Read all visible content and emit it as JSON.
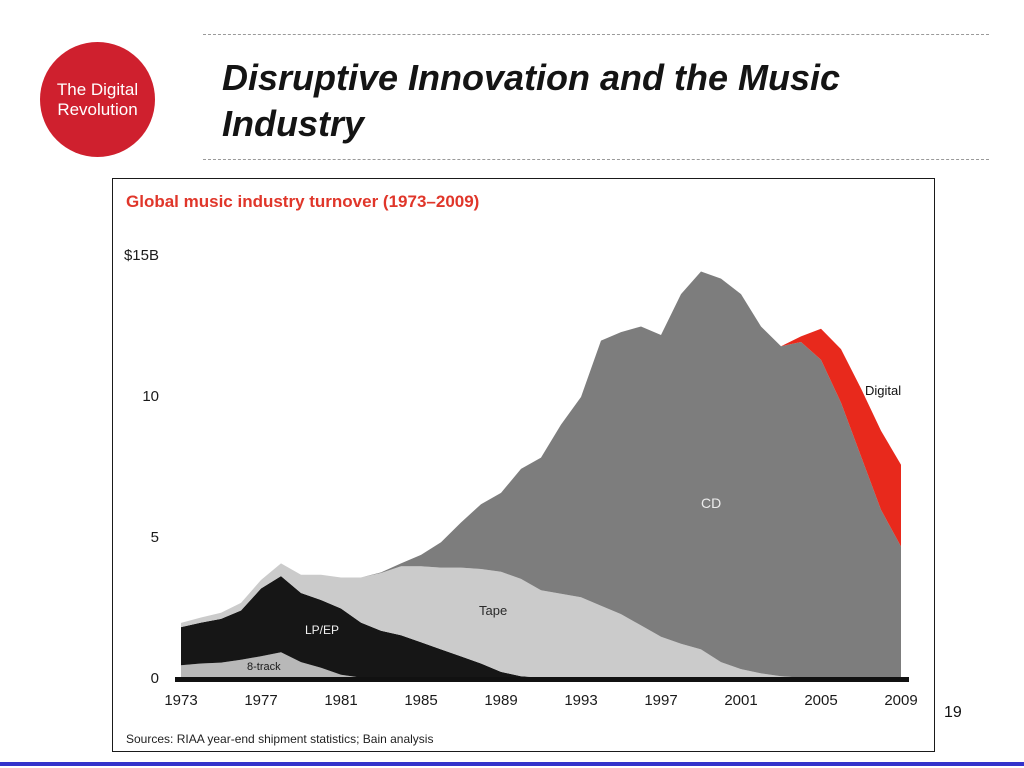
{
  "slide": {
    "badge": {
      "line1": "The Digital",
      "line2": "Revolution",
      "color": "#cf202e"
    },
    "title_line1": "Disruptive Innovation and the Music",
    "title_line2": "Industry",
    "page_number": "19",
    "accent_line_color": "#3333cc"
  },
  "chart_data": {
    "type": "area",
    "stacked": true,
    "title": "Global music industry turnover (1973–2009)",
    "title_color": "#e0362a",
    "source_note": "Sources: RIAA year-end shipment statistics; Bain analysis",
    "unit": "$B",
    "xlabel": "",
    "ylabel": "",
    "ylim": [
      0,
      15
    ],
    "grid": false,
    "legend": "inline-labels",
    "x": [
      1973,
      1974,
      1975,
      1976,
      1977,
      1978,
      1979,
      1980,
      1981,
      1982,
      1983,
      1984,
      1985,
      1986,
      1987,
      1988,
      1989,
      1990,
      1991,
      1992,
      1993,
      1994,
      1995,
      1996,
      1997,
      1998,
      1999,
      2000,
      2001,
      2002,
      2003,
      2004,
      2005,
      2006,
      2007,
      2008,
      2009
    ],
    "xticks": [
      1973,
      1977,
      1981,
      1985,
      1989,
      1993,
      1997,
      2001,
      2005,
      2009
    ],
    "yticks": [
      {
        "label": "$15B",
        "value": 15
      },
      {
        "label": "10",
        "value": 10
      },
      {
        "label": "5",
        "value": 5
      },
      {
        "label": "0",
        "value": 0
      }
    ],
    "series": [
      {
        "id": "eight-track",
        "name": "8-track",
        "color": "#b8b8b8",
        "label_color": "#1a1a1a",
        "values": [
          0.49,
          0.55,
          0.58,
          0.68,
          0.81,
          0.95,
          0.6,
          0.4,
          0.15,
          0.05,
          0.01,
          0,
          0,
          0,
          0,
          0,
          0,
          0,
          0,
          0,
          0,
          0,
          0,
          0,
          0,
          0,
          0,
          0,
          0,
          0,
          0,
          0,
          0,
          0,
          0,
          0,
          0
        ]
      },
      {
        "id": "lp-ep",
        "name": "LP/EP",
        "color": "#161616",
        "label_color": "#f2f2f2",
        "values": [
          1.35,
          1.45,
          1.55,
          1.75,
          2.4,
          2.7,
          2.45,
          2.4,
          2.35,
          1.95,
          1.7,
          1.55,
          1.3,
          1.05,
          0.8,
          0.55,
          0.25,
          0.1,
          0.05,
          0.02,
          0,
          0,
          0,
          0,
          0,
          0,
          0,
          0,
          0,
          0,
          0,
          0,
          0,
          0,
          0,
          0,
          0
        ]
      },
      {
        "id": "tape",
        "name": "Tape",
        "color": "#cbcbcb",
        "label_color": "#2a2a2a",
        "values": [
          0.15,
          0.18,
          0.22,
          0.27,
          0.3,
          0.45,
          0.65,
          0.9,
          1.1,
          1.6,
          2.05,
          2.45,
          2.7,
          2.9,
          3.15,
          3.35,
          3.55,
          3.45,
          3.1,
          3.0,
          2.9,
          2.6,
          2.3,
          1.9,
          1.5,
          1.25,
          1.05,
          0.6,
          0.35,
          0.2,
          0.1,
          0.05,
          0.02,
          0,
          0,
          0,
          0
        ]
      },
      {
        "id": "cd",
        "name": "CD",
        "color": "#7d7d7d",
        "label_color": "#ececec",
        "values": [
          0,
          0,
          0,
          0,
          0,
          0,
          0,
          0,
          0,
          0,
          0.02,
          0.1,
          0.4,
          0.9,
          1.6,
          2.3,
          2.8,
          3.9,
          4.7,
          6.0,
          7.1,
          9.4,
          10.0,
          10.6,
          10.7,
          12.4,
          13.4,
          13.6,
          13.3,
          12.3,
          11.7,
          11.9,
          11.3,
          9.8,
          7.9,
          6.0,
          4.7
        ]
      },
      {
        "id": "digital",
        "name": "Digital",
        "color": "#e8291c",
        "label_color": "#111111",
        "values": [
          0,
          0,
          0,
          0,
          0,
          0,
          0,
          0,
          0,
          0,
          0,
          0,
          0,
          0,
          0,
          0,
          0,
          0,
          0,
          0,
          0,
          0,
          0,
          0,
          0,
          0,
          0,
          0,
          0,
          0,
          0,
          0.2,
          1.1,
          1.9,
          2.4,
          2.8,
          2.9
        ]
      }
    ]
  }
}
